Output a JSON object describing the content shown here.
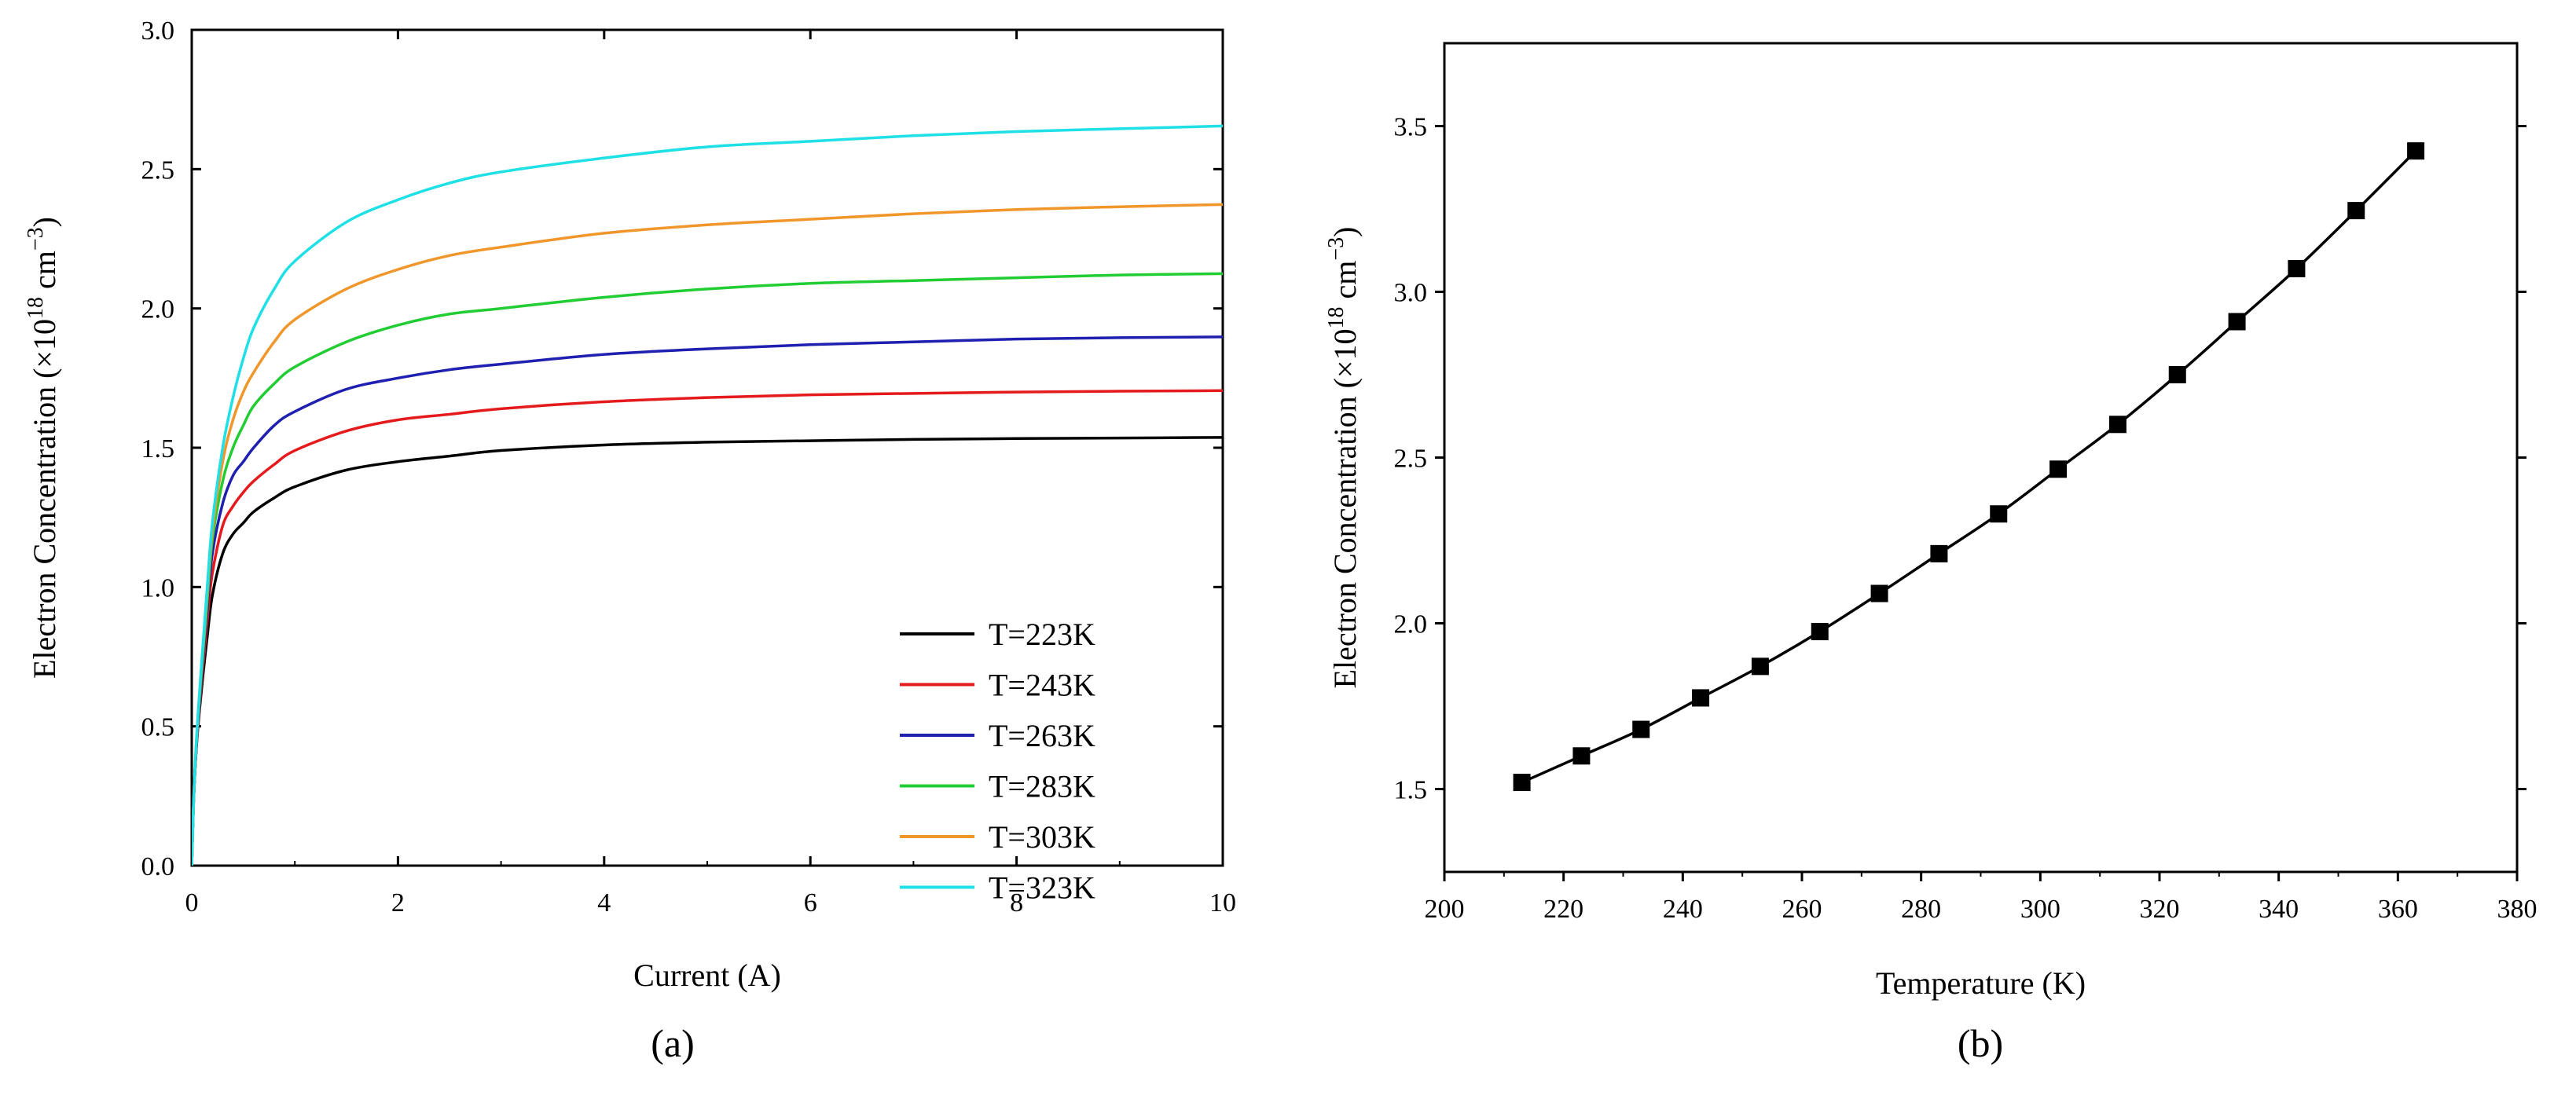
{
  "chart_data": [
    {
      "type": "line",
      "panel_label": "(a)",
      "xlabel": "Current (A)",
      "ylabel": "Electron Concentration (×10",
      "ylabel_exp": "18",
      "ylabel_unit": " cm",
      "ylabel_unit_exp": "−3",
      "ylabel_close": ")",
      "xlim": [
        0,
        10
      ],
      "ylim": [
        0,
        3.0
      ],
      "x_ticks": [
        0,
        2,
        4,
        6,
        8,
        10
      ],
      "x_tick_labels": [
        "0",
        "2",
        "4",
        "6",
        "8",
        "10"
      ],
      "y_ticks": [
        0,
        0.5,
        1.0,
        1.5,
        2.0,
        2.5,
        3.0
      ],
      "y_tick_labels": [
        "0.0",
        "0.5",
        "1.0",
        "1.5",
        "2.0",
        "2.5",
        "3.0"
      ],
      "legend_position": "bottom-right",
      "x": [
        0,
        0.02,
        0.05,
        0.1,
        0.15,
        0.2,
        0.3,
        0.4,
        0.5,
        0.6,
        0.8,
        1.0,
        1.5,
        2.0,
        2.5,
        3.0,
        4.0,
        5.0,
        6.0,
        7.0,
        8.0,
        9.0,
        10.0
      ],
      "series": [
        {
          "name": "T=223K",
          "color": "#000000",
          "values": [
            0,
            0.25,
            0.45,
            0.65,
            0.82,
            0.97,
            1.12,
            1.19,
            1.23,
            1.27,
            1.32,
            1.36,
            1.42,
            1.45,
            1.47,
            1.49,
            1.51,
            1.52,
            1.525,
            1.53,
            1.533,
            1.535,
            1.537
          ]
        },
        {
          "name": "T=243K",
          "color": "#e41a1c",
          "values": [
            0,
            0.25,
            0.45,
            0.68,
            0.88,
            1.05,
            1.22,
            1.29,
            1.34,
            1.38,
            1.44,
            1.49,
            1.56,
            1.6,
            1.62,
            1.64,
            1.665,
            1.68,
            1.69,
            1.695,
            1.7,
            1.703,
            1.705
          ]
        },
        {
          "name": "T=263K",
          "color": "#1f1fb0",
          "values": [
            0,
            0.25,
            0.46,
            0.7,
            0.92,
            1.12,
            1.3,
            1.4,
            1.45,
            1.5,
            1.58,
            1.63,
            1.71,
            1.75,
            1.78,
            1.8,
            1.835,
            1.855,
            1.87,
            1.88,
            1.89,
            1.895,
            1.898
          ]
        },
        {
          "name": "T=283K",
          "color": "#22cc33",
          "values": [
            0,
            0.25,
            0.47,
            0.72,
            0.95,
            1.17,
            1.38,
            1.5,
            1.58,
            1.65,
            1.73,
            1.79,
            1.88,
            1.94,
            1.98,
            2.0,
            2.04,
            2.07,
            2.09,
            2.1,
            2.11,
            2.12,
            2.125
          ]
        },
        {
          "name": "T=303K",
          "color": "#f0962a",
          "values": [
            0,
            0.25,
            0.48,
            0.74,
            0.98,
            1.2,
            1.45,
            1.6,
            1.7,
            1.77,
            1.88,
            1.96,
            2.07,
            2.14,
            2.19,
            2.22,
            2.27,
            2.3,
            2.32,
            2.34,
            2.355,
            2.365,
            2.373
          ]
        },
        {
          "name": "T=323K",
          "color": "#1ee0e6",
          "values": [
            0,
            0.25,
            0.48,
            0.75,
            1.0,
            1.23,
            1.5,
            1.68,
            1.82,
            1.93,
            2.07,
            2.17,
            2.31,
            2.39,
            2.45,
            2.49,
            2.54,
            2.58,
            2.6,
            2.62,
            2.635,
            2.645,
            2.655
          ]
        }
      ]
    },
    {
      "type": "line",
      "panel_label": "(b)",
      "marker": "square",
      "xlabel": "Temperature (K)",
      "ylabel": "Electron Concentration (×10",
      "ylabel_exp": "18",
      "ylabel_unit": " cm",
      "ylabel_unit_exp": "−3",
      "ylabel_close": ")",
      "xlim": [
        200,
        380
      ],
      "ylim": [
        1.25,
        3.75
      ],
      "x_ticks": [
        200,
        220,
        240,
        260,
        280,
        300,
        320,
        340,
        360,
        380
      ],
      "x_tick_labels": [
        "200",
        "220",
        "240",
        "260",
        "280",
        "300",
        "320",
        "340",
        "360",
        "380"
      ],
      "y_ticks": [
        1.5,
        2.0,
        2.5,
        3.0,
        3.5
      ],
      "y_tick_labels": [
        "1.5",
        "2.0",
        "2.5",
        "3.0",
        "3.5"
      ],
      "x": [
        213,
        223,
        233,
        243,
        253,
        263,
        273,
        283,
        293,
        303,
        313,
        323,
        333,
        343,
        353,
        363
      ],
      "series": [
        {
          "name": "Electron Concentration",
          "color": "#000000",
          "values": [
            1.52,
            1.6,
            1.68,
            1.775,
            1.87,
            1.975,
            2.09,
            2.21,
            2.33,
            2.465,
            2.6,
            2.75,
            2.91,
            3.07,
            3.245,
            3.425
          ]
        }
      ]
    }
  ]
}
